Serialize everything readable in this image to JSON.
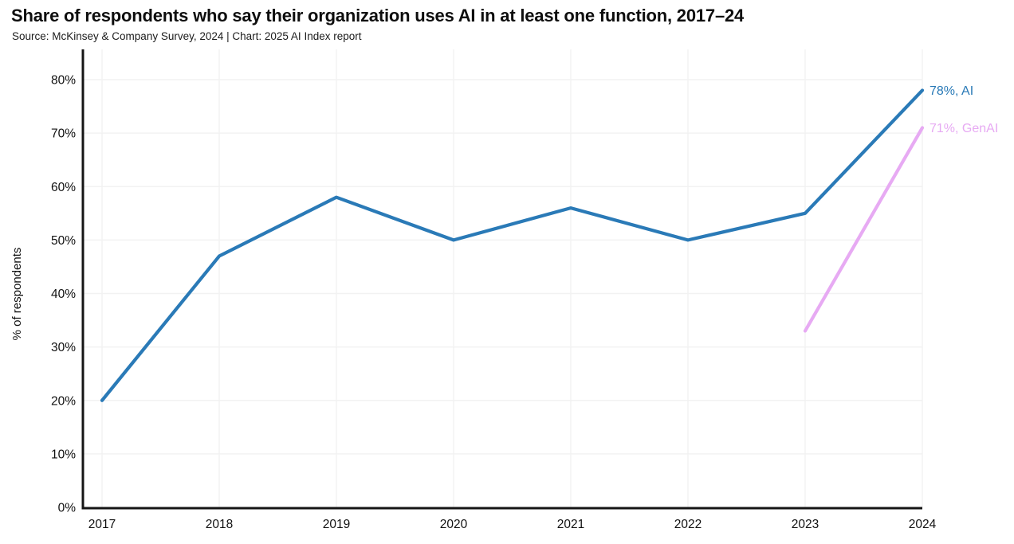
{
  "chart_data": {
    "type": "line",
    "title": "Share of respondents who say their organization uses AI in at least one function, 2017–24",
    "source": "Source: McKinsey & Company Survey, 2024 | Chart: 2025 AI Index report",
    "xlabel": "",
    "ylabel": "% of respondents",
    "categories": [
      "2017",
      "2018",
      "2019",
      "2020",
      "2021",
      "2022",
      "2023",
      "2024"
    ],
    "y_ticks": [
      "0%",
      "10%",
      "20%",
      "30%",
      "40%",
      "50%",
      "60%",
      "70%",
      "80%"
    ],
    "ylim": [
      0,
      80
    ],
    "grid": true,
    "legend_position": "end-of-line-labels",
    "colors": {
      "axis": "#151515",
      "gridline": "#f2f2f2",
      "tick_text": "#111111"
    },
    "series": [
      {
        "name": "AI",
        "color": "#2a7ab7",
        "values": [
          20,
          47,
          58,
          50,
          56,
          50,
          55,
          78
        ],
        "end_label": "78%, AI"
      },
      {
        "name": "GenAI",
        "color": "#e7aaf3",
        "values": [
          null,
          null,
          null,
          null,
          null,
          null,
          33,
          71
        ],
        "end_label": "71%, GenAI"
      }
    ]
  }
}
